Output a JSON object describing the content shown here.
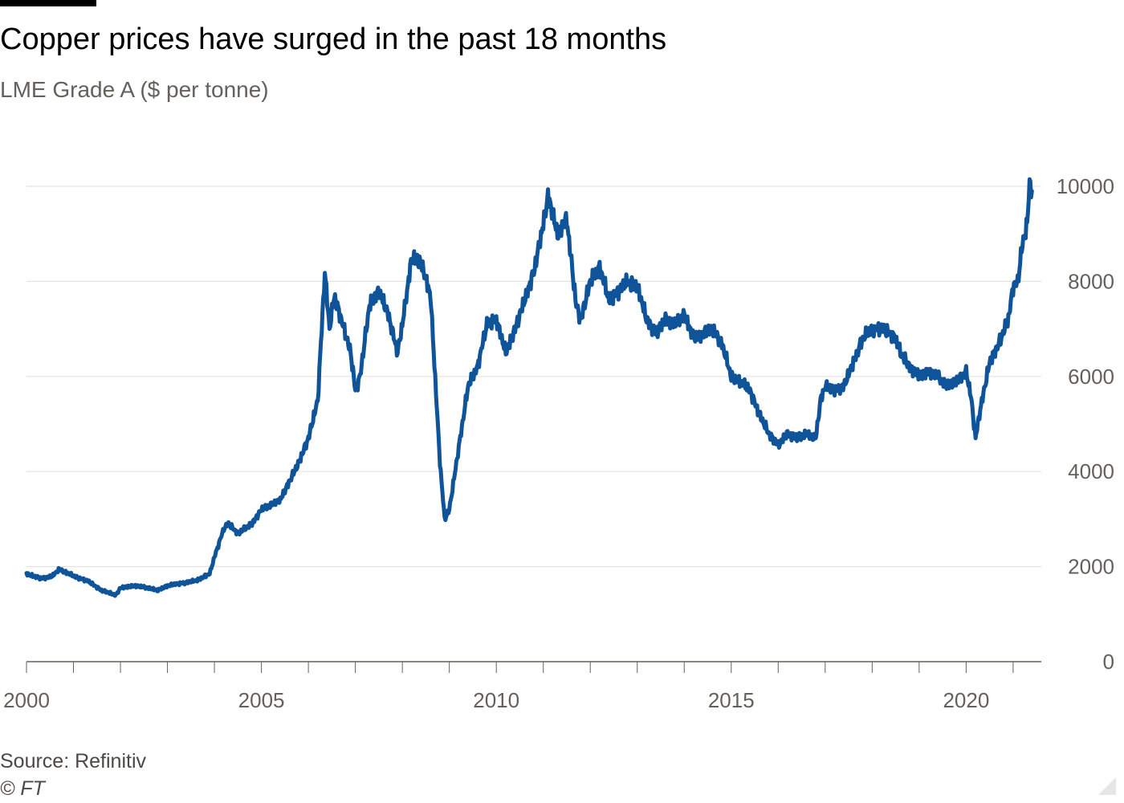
{
  "header": {
    "title": "Copper prices have surged in the past 18 months",
    "subtitle": "LME Grade A ($ per tonne)"
  },
  "footer": {
    "source": "Source: Refinitiv",
    "copyright": "© FT"
  },
  "colors": {
    "line": "#0f5499",
    "grid": "#e6e2df",
    "axis": "#66605c",
    "background": "#ffffff"
  },
  "chart_data": {
    "type": "line",
    "title": "Copper prices have surged in the past 18 months",
    "subtitle": "LME Grade A ($ per tonne)",
    "xlabel": "",
    "ylabel": "",
    "xlim": [
      2000,
      2021.6
    ],
    "ylim": [
      0,
      10000
    ],
    "x_ticks": [
      2000,
      2005,
      2010,
      2015,
      2020
    ],
    "y_ticks": [
      0,
      2000,
      4000,
      6000,
      8000,
      10000
    ],
    "y_axis_side": "right",
    "grid": "horizontal",
    "legend": "none",
    "series": [
      {
        "name": "",
        "x": [
          2000.0,
          2000.3,
          2000.55,
          2000.7,
          2001.0,
          2001.3,
          2001.6,
          2001.9,
          2002.0,
          2002.3,
          2002.6,
          2002.8,
          2003.0,
          2003.3,
          2003.6,
          2003.9,
          2004.0,
          2004.2,
          2004.3,
          2004.5,
          2004.8,
          2005.0,
          2005.2,
          2005.4,
          2005.6,
          2005.8,
          2006.0,
          2006.2,
          2006.35,
          2006.45,
          2006.55,
          2006.7,
          2006.9,
          2007.0,
          2007.1,
          2007.3,
          2007.5,
          2007.7,
          2007.9,
          2008.0,
          2008.2,
          2008.4,
          2008.6,
          2008.8,
          2008.9,
          2009.0,
          2009.2,
          2009.4,
          2009.6,
          2009.8,
          2010.0,
          2010.2,
          2010.4,
          2010.6,
          2010.8,
          2011.0,
          2011.1,
          2011.3,
          2011.5,
          2011.7,
          2011.8,
          2012.0,
          2012.2,
          2012.4,
          2012.6,
          2012.8,
          2013.0,
          2013.2,
          2013.4,
          2013.6,
          2013.8,
          2014.0,
          2014.2,
          2014.4,
          2014.6,
          2014.8,
          2015.0,
          2015.2,
          2015.4,
          2015.6,
          2015.8,
          2016.0,
          2016.2,
          2016.4,
          2016.6,
          2016.8,
          2016.9,
          2017.0,
          2017.2,
          2017.4,
          2017.6,
          2017.8,
          2018.0,
          2018.2,
          2018.4,
          2018.5,
          2018.6,
          2018.8,
          2019.0,
          2019.2,
          2019.4,
          2019.6,
          2019.8,
          2020.0,
          2020.1,
          2020.2,
          2020.3,
          2020.5,
          2020.7,
          2020.9,
          2021.0,
          2021.1,
          2021.2,
          2021.3,
          2021.35,
          2021.4
        ],
        "values": [
          1850,
          1750,
          1800,
          1950,
          1800,
          1700,
          1500,
          1400,
          1550,
          1600,
          1550,
          1500,
          1600,
          1650,
          1700,
          1850,
          2200,
          2800,
          2900,
          2700,
          2900,
          3200,
          3300,
          3400,
          3800,
          4200,
          4700,
          5500,
          8200,
          7000,
          7700,
          7200,
          6500,
          5700,
          6000,
          7500,
          7800,
          7300,
          6500,
          7100,
          8500,
          8400,
          7700,
          4200,
          3000,
          3200,
          4500,
          5800,
          6200,
          7100,
          7200,
          6500,
          7000,
          7600,
          8200,
          9200,
          9800,
          9000,
          9300,
          7500,
          7200,
          8000,
          8300,
          7600,
          7800,
          8000,
          7900,
          7200,
          6900,
          7200,
          7100,
          7300,
          6800,
          6900,
          7000,
          6700,
          6000,
          5900,
          5700,
          5200,
          4800,
          4550,
          4800,
          4700,
          4800,
          4700,
          5500,
          5800,
          5700,
          5800,
          6300,
          6800,
          7000,
          7000,
          6900,
          6800,
          6500,
          6200,
          6000,
          6100,
          6000,
          5800,
          5900,
          6100,
          5600,
          4700,
          5300,
          6300,
          6700,
          7200,
          7900,
          8000,
          8800,
          9200,
          10100,
          9900
        ]
      }
    ]
  }
}
